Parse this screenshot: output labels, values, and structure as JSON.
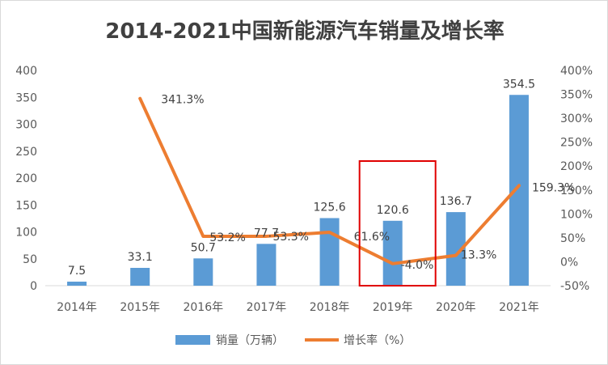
{
  "chart_data": {
    "type": "bar",
    "title": "2014-2021中国新能源汽车销量及增长率",
    "categories": [
      "2014年",
      "2015年",
      "2016年",
      "2017年",
      "2018年",
      "2019年",
      "2020年",
      "2021年"
    ],
    "series": [
      {
        "name": "销量（万辆）",
        "type": "bar",
        "axis": "left",
        "color": "#5b9bd5",
        "values": [
          7.5,
          33.1,
          50.7,
          77.7,
          125.6,
          120.6,
          136.7,
          354.5
        ],
        "labels": [
          "7.5",
          "33.1",
          "50.7",
          "77.7",
          "125.6",
          "120.6",
          "136.7",
          "354.5"
        ]
      },
      {
        "name": "增长率（%）",
        "type": "line",
        "axis": "right",
        "color": "#ed7d31",
        "values": [
          null,
          341.3,
          53.2,
          53.3,
          61.6,
          -4.0,
          13.3,
          159.3
        ],
        "labels": [
          "",
          "341.3%",
          "53.2%",
          "53.3%",
          "61.6%",
          "-4.0%",
          "13.3%",
          "159.3%"
        ]
      }
    ],
    "y_left": {
      "range": [
        0,
        400
      ],
      "ticks": [
        0,
        50,
        100,
        150,
        200,
        250,
        300,
        350,
        400
      ],
      "tick_labels": [
        "0",
        "50",
        "100",
        "150",
        "200",
        "250",
        "300",
        "350",
        "400"
      ]
    },
    "y_right": {
      "range": [
        -50,
        400
      ],
      "ticks": [
        -50,
        0,
        50,
        100,
        150,
        200,
        250,
        300,
        350,
        400
      ],
      "tick_labels": [
        "-50%",
        "0%",
        "50%",
        "100%",
        "150%",
        "200%",
        "250%",
        "300%",
        "350%",
        "400%"
      ]
    },
    "legend_position": "bottom-center",
    "grid": false,
    "highlight": {
      "category": "2019年",
      "color": "#e00000"
    }
  }
}
